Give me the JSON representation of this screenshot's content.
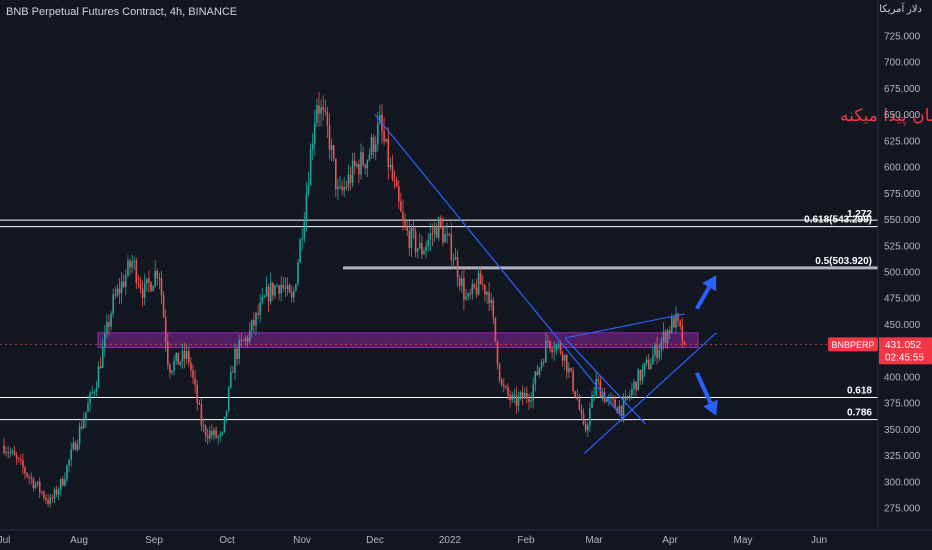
{
  "header": {
    "title": "BNB Perpetual Futures Contract, 4h, BINANCE",
    "currency": "دلار آمریکا"
  },
  "price_badge": {
    "symbol": "BNBPERP",
    "price": "431.052",
    "countdown": "02:45:55",
    "color": "#f23645"
  },
  "annotation": "باید دید در مثلث به کدام جهت نوسان پیدا میکنه",
  "colors": {
    "background": "#131722",
    "up": "#26a69a",
    "down": "#ef5350",
    "trendline": "#2962ff",
    "arrow": "#2962ff",
    "zone": "#9c27b0",
    "fib_line": "#ffffff",
    "annotation": "#f23645"
  },
  "chart_data": {
    "type": "candlestick",
    "title": "BNB Perpetual Futures Contract, 4h, BINANCE",
    "ylim": [
      262,
      745
    ],
    "y_ticks": [
      "725.000",
      "700.000",
      "675.000",
      "650.000",
      "625.000",
      "600.000",
      "575.000",
      "550.000",
      "525.000",
      "500.000",
      "475.000",
      "450.000",
      "425.000",
      "400.000",
      "375.000",
      "350.000",
      "325.000",
      "300.000",
      "275.000"
    ],
    "x_ticks": [
      "Jul",
      "Aug",
      "Sep",
      "Oct",
      "Nov",
      "Dec",
      "2022",
      "Feb",
      "Mar",
      "Apr",
      "May",
      "Jun"
    ],
    "grid": false,
    "last_price": 431.052,
    "price_path": [
      {
        "date": "2021-07-01",
        "price": 335
      },
      {
        "date": "2021-07-20",
        "price": 280
      },
      {
        "date": "2021-07-25",
        "price": 300
      },
      {
        "date": "2021-08-08",
        "price": 395
      },
      {
        "date": "2021-08-15",
        "price": 470
      },
      {
        "date": "2021-08-23",
        "price": 510
      },
      {
        "date": "2021-08-28",
        "price": 480
      },
      {
        "date": "2021-09-03",
        "price": 505
      },
      {
        "date": "2021-09-07",
        "price": 410
      },
      {
        "date": "2021-09-15",
        "price": 420
      },
      {
        "date": "2021-09-21",
        "price": 350
      },
      {
        "date": "2021-09-29",
        "price": 340
      },
      {
        "date": "2021-10-04",
        "price": 420
      },
      {
        "date": "2021-10-10",
        "price": 440
      },
      {
        "date": "2021-10-18",
        "price": 480
      },
      {
        "date": "2021-10-23",
        "price": 490
      },
      {
        "date": "2021-10-28",
        "price": 470
      },
      {
        "date": "2021-11-02",
        "price": 560
      },
      {
        "date": "2021-11-07",
        "price": 665
      },
      {
        "date": "2021-11-12",
        "price": 630
      },
      {
        "date": "2021-11-16",
        "price": 570
      },
      {
        "date": "2021-11-23",
        "price": 600
      },
      {
        "date": "2021-11-28",
        "price": 610
      },
      {
        "date": "2021-12-03",
        "price": 640
      },
      {
        "date": "2021-12-08",
        "price": 590
      },
      {
        "date": "2021-12-13",
        "price": 540
      },
      {
        "date": "2021-12-20",
        "price": 520
      },
      {
        "date": "2021-12-27",
        "price": 545
      },
      {
        "date": "2022-01-02",
        "price": 520
      },
      {
        "date": "2022-01-08",
        "price": 470
      },
      {
        "date": "2022-01-13",
        "price": 490
      },
      {
        "date": "2022-01-17",
        "price": 480
      },
      {
        "date": "2022-01-22",
        "price": 390
      },
      {
        "date": "2022-01-27",
        "price": 375
      },
      {
        "date": "2022-02-03",
        "price": 385
      },
      {
        "date": "2022-02-10",
        "price": 435
      },
      {
        "date": "2022-02-16",
        "price": 425
      },
      {
        "date": "2022-02-22",
        "price": 380
      },
      {
        "date": "2022-02-25",
        "price": 345
      },
      {
        "date": "2022-03-02",
        "price": 395
      },
      {
        "date": "2022-03-07",
        "price": 375
      },
      {
        "date": "2022-03-13",
        "price": 370
      },
      {
        "date": "2022-03-18",
        "price": 395
      },
      {
        "date": "2022-03-24",
        "price": 415
      },
      {
        "date": "2022-03-30",
        "price": 440
      },
      {
        "date": "2022-04-03",
        "price": 455
      },
      {
        "date": "2022-04-07",
        "price": 431.052
      }
    ],
    "fibonacci_levels": [
      {
        "label": "1.272",
        "price": 549.5
      },
      {
        "label": "0.618(543.299)",
        "price": 543.299
      },
      {
        "label": "0.5(503.920)",
        "price": 503.92
      },
      {
        "label": "0.618",
        "price": 380.3
      },
      {
        "label": "0.786",
        "price": 359.3
      }
    ],
    "zone": {
      "from": 428,
      "to": 442
    },
    "trendlines": [
      {
        "from": {
          "date": "2021-12-01",
          "price": 650
        },
        "to": {
          "date": "2022-03-13",
          "price": 360
        }
      },
      {
        "from": {
          "date": "2022-02-17",
          "price": 437
        },
        "to": {
          "date": "2022-04-07",
          "price": 460
        }
      },
      {
        "from": {
          "date": "2022-02-25",
          "price": 327
        },
        "to": {
          "date": "2022-04-20",
          "price": 442
        }
      },
      {
        "from": {
          "date": "2022-02-17",
          "price": 437
        },
        "to": {
          "date": "2022-03-22",
          "price": 355
        }
      }
    ],
    "arrows": [
      {
        "from": {
          "date": "2022-04-12",
          "price": 465
        },
        "to": {
          "date": "2022-04-20",
          "price": 497
        }
      },
      {
        "from": {
          "date": "2022-04-12",
          "price": 404
        },
        "to": {
          "date": "2022-04-20",
          "price": 363
        }
      }
    ]
  }
}
